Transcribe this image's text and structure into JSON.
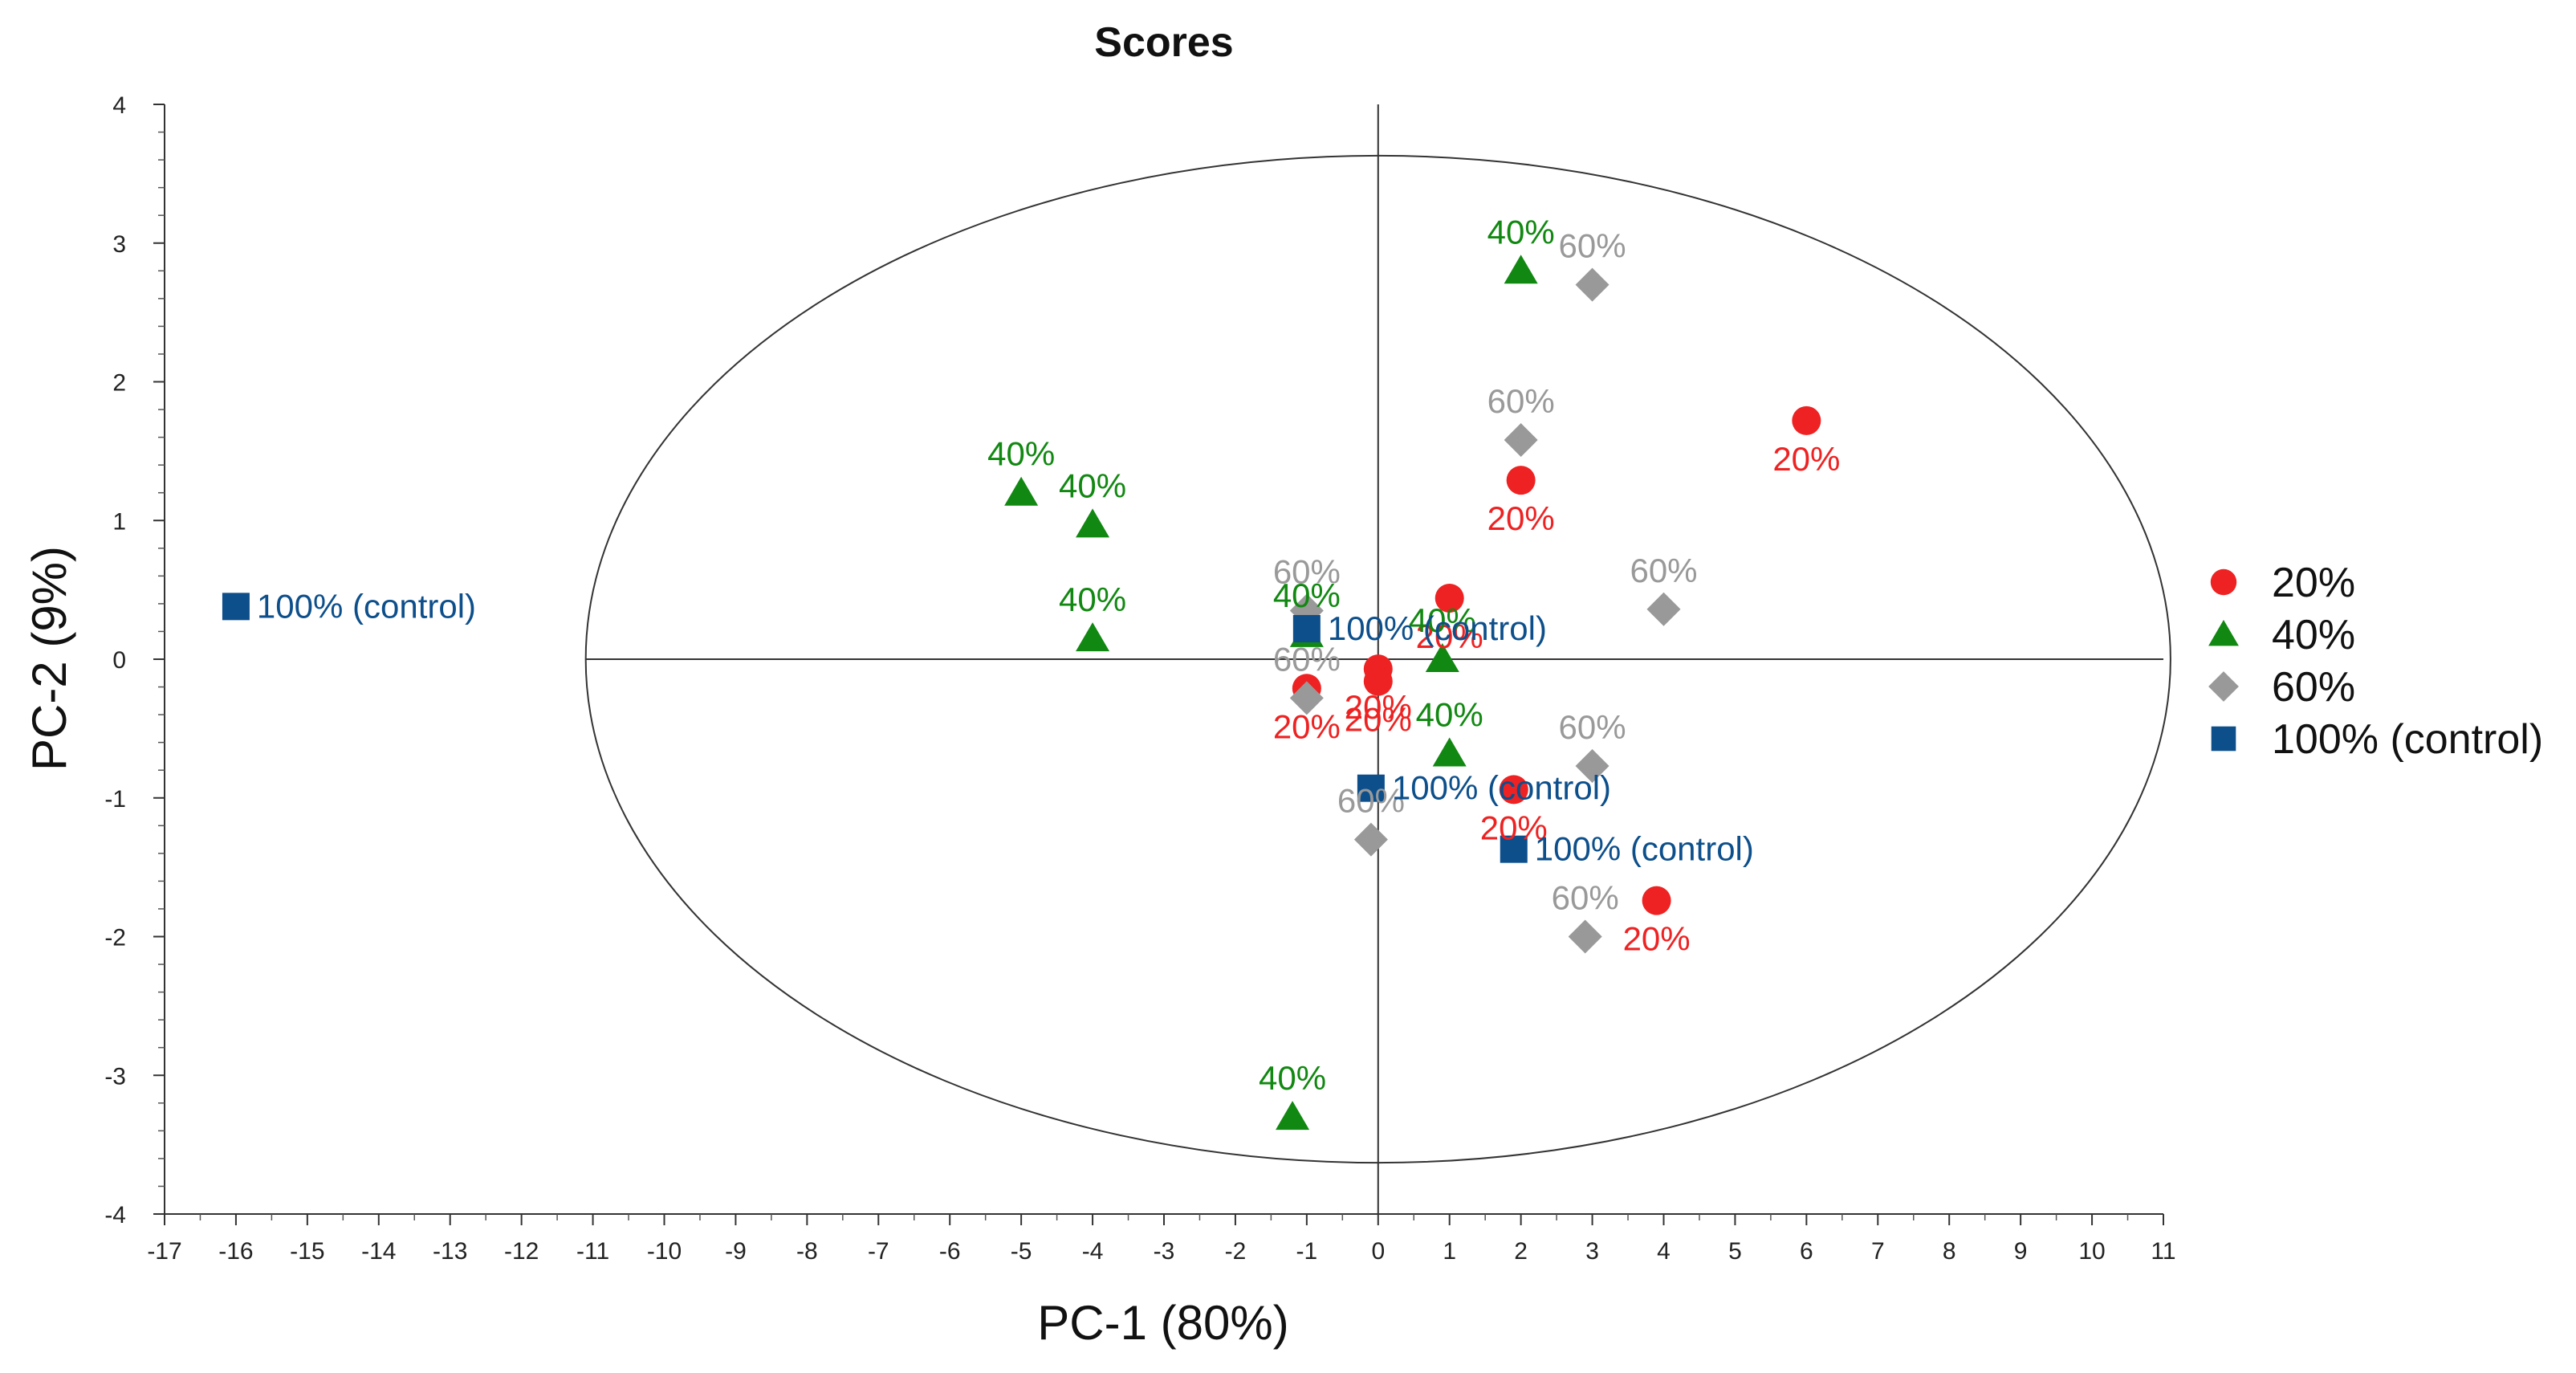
{
  "chart_data": {
    "type": "scatter",
    "title": "Scores",
    "xlabel": "PC-1 (80%)",
    "ylabel": "PC-2 (9%)",
    "xlim": [
      -17,
      11
    ],
    "ylim": [
      -4,
      4
    ],
    "x_ticks": [
      -17,
      -16,
      -15,
      -14,
      -13,
      -12,
      -11,
      -10,
      -9,
      -8,
      -7,
      -6,
      -5,
      -4,
      -3,
      -2,
      -1,
      0,
      1,
      2,
      3,
      4,
      5,
      6,
      7,
      8,
      9,
      10,
      11
    ],
    "y_ticks": [
      -4,
      -3,
      -2,
      -1,
      0,
      1,
      2,
      3,
      4
    ],
    "confidence_ellipse": {
      "center": [
        0,
        0
      ],
      "radius_x": 11.1,
      "radius_y": 3.63
    },
    "legend_position": "right",
    "series": [
      {
        "name": "20%",
        "marker": "circle",
        "color": "#ee2222",
        "points": [
          {
            "x": 6.0,
            "y": 1.72,
            "label": "20%"
          },
          {
            "x": 2.0,
            "y": 1.29,
            "label": "20%"
          },
          {
            "x": 1.0,
            "y": 0.44,
            "label": "20%"
          },
          {
            "x": -1.0,
            "y": -0.21,
            "label": "20%"
          },
          {
            "x": 0.0,
            "y": -0.07,
            "label": "20%"
          },
          {
            "x": 0.0,
            "y": -0.16,
            "label": "20%"
          },
          {
            "x": 1.9,
            "y": -0.94,
            "label": "20%"
          },
          {
            "x": 3.9,
            "y": -1.74,
            "label": "20%"
          }
        ]
      },
      {
        "name": "40%",
        "marker": "triangle",
        "color": "#118811",
        "points": [
          {
            "x": 2.0,
            "y": 2.8,
            "label": "40%"
          },
          {
            "x": -5.0,
            "y": 1.2,
            "label": "40%"
          },
          {
            "x": -4.0,
            "y": 0.97,
            "label": "40%"
          },
          {
            "x": -4.0,
            "y": 0.15,
            "label": "40%"
          },
          {
            "x": -1.0,
            "y": 0.18,
            "label": "40%"
          },
          {
            "x": 0.9,
            "y": 0.0,
            "label": "40%"
          },
          {
            "x": 1.0,
            "y": -0.68,
            "label": "40%"
          },
          {
            "x": -1.2,
            "y": -3.3,
            "label": "40%"
          }
        ]
      },
      {
        "name": "60%",
        "marker": "diamond",
        "color": "#999999",
        "points": [
          {
            "x": 3.0,
            "y": 2.7,
            "label": "60%"
          },
          {
            "x": 2.0,
            "y": 1.58,
            "label": "60%"
          },
          {
            "x": 4.0,
            "y": 0.36,
            "label": "60%"
          },
          {
            "x": -1.0,
            "y": 0.35,
            "label": "60%"
          },
          {
            "x": -1.0,
            "y": -0.28,
            "label": "60%"
          },
          {
            "x": 3.0,
            "y": -0.77,
            "label": "60%"
          },
          {
            "x": -0.1,
            "y": -1.3,
            "label": "60%"
          },
          {
            "x": 2.9,
            "y": -2.0,
            "label": "60%"
          }
        ]
      },
      {
        "name": "100% (control)",
        "marker": "square",
        "color": "#0d4f8b",
        "points": [
          {
            "x": -16.0,
            "y": 0.38,
            "label": "100% (control)"
          },
          {
            "x": -1.0,
            "y": 0.22,
            "label": "100% (control)"
          },
          {
            "x": -0.1,
            "y": -0.93,
            "label": "100% (control)"
          },
          {
            "x": 1.9,
            "y": -1.37,
            "label": "100% (control)"
          }
        ]
      }
    ]
  }
}
